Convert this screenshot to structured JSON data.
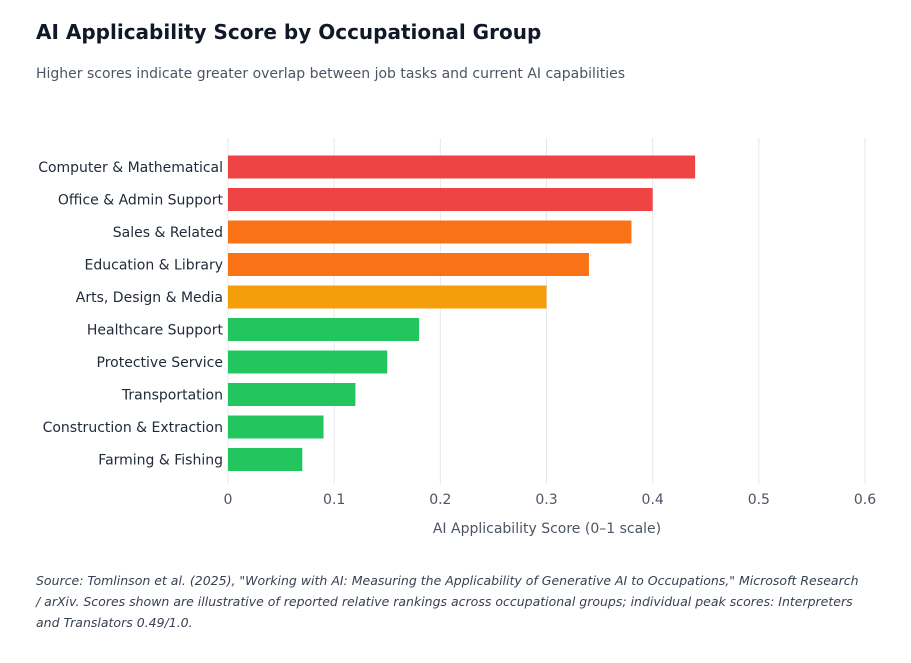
{
  "header": {
    "title": "AI Applicability Score by Occupational Group",
    "subtitle": "Higher scores indicate greater overlap between job tasks and current AI capabilities"
  },
  "footer": {
    "source": "Source: Tomlinson et al. (2025), \"Working with AI: Measuring the Applicability of Generative AI to Occupations,\" Microsoft Research / arXiv. Scores shown are illustrative of reported relative rankings across occupational groups; individual peak scores: Interpreters and Translators 0.49/1.0."
  },
  "chart_data": {
    "type": "bar",
    "orientation": "horizontal",
    "categories": [
      "Computer & Mathematical",
      "Office & Admin Support",
      "Sales & Related",
      "Education & Library",
      "Arts, Design & Media",
      "Healthcare Support",
      "Protective Service",
      "Transportation",
      "Construction & Extraction",
      "Farming & Fishing"
    ],
    "values": [
      0.44,
      0.4,
      0.38,
      0.34,
      0.3,
      0.18,
      0.15,
      0.12,
      0.09,
      0.07
    ],
    "colors": [
      "#ef4444",
      "#ef4444",
      "#f97316",
      "#f97316",
      "#f59e0b",
      "#22c55e",
      "#22c55e",
      "#22c55e",
      "#22c55e",
      "#22c55e"
    ],
    "xlabel": "AI Applicability Score (0–1 scale)",
    "ylabel": "",
    "xlim": [
      0,
      0.6
    ],
    "xticks": [
      0,
      0.1,
      0.2,
      0.3,
      0.4,
      0.5,
      0.6
    ],
    "xtick_labels": [
      "0",
      "0.1",
      "0.2",
      "0.3",
      "0.4",
      "0.5",
      "0.6"
    ],
    "grid": "vertical",
    "legend": "none"
  }
}
